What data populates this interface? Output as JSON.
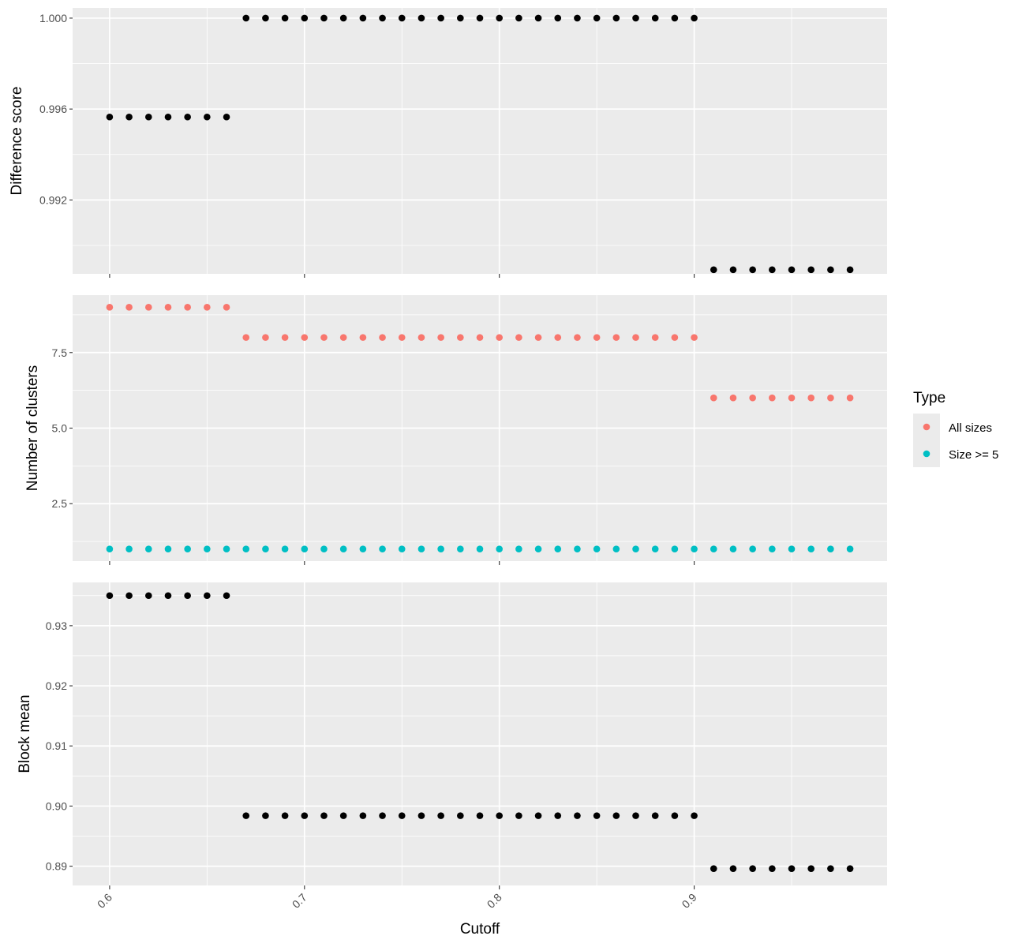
{
  "chart_data": {
    "type": "scatter",
    "x": [
      0.6,
      0.61,
      0.62,
      0.63,
      0.64,
      0.65,
      0.66,
      0.67,
      0.68,
      0.69,
      0.7,
      0.71,
      0.72,
      0.73,
      0.74,
      0.75,
      0.76,
      0.77,
      0.78,
      0.79,
      0.8,
      0.81,
      0.82,
      0.83,
      0.84,
      0.85,
      0.86,
      0.87,
      0.88,
      0.89,
      0.9,
      0.91,
      0.92,
      0.93,
      0.94,
      0.95,
      0.96,
      0.97,
      0.98
    ],
    "xlabel": "Cutoff",
    "xlim": [
      0.581,
      0.999
    ],
    "xticks": [
      0.6,
      0.7,
      0.8,
      0.9
    ],
    "xtick_labels": [
      "0.6",
      "0.7",
      "0.8",
      "0.9"
    ],
    "grid": true,
    "colors": {
      "panel_bg": "#ebebeb",
      "grid": "#ffffff",
      "black_points": "#000000"
    },
    "legend": {
      "title": "Type",
      "position": "right",
      "entries": [
        {
          "label": "All sizes",
          "color": "#f8766d"
        },
        {
          "label": "Size >= 5",
          "color": "#00bfc4"
        }
      ]
    },
    "panels": [
      {
        "ylabel": "Difference score",
        "ylim": [
          0.98875,
          1.00045
        ],
        "yticks": [
          0.992,
          0.996,
          1.0
        ],
        "ytick_labels": [
          "0.992",
          "0.996",
          "1.000"
        ],
        "series": [
          {
            "color": "#000000",
            "values": [
              0.99565,
              0.99565,
              0.99565,
              0.99565,
              0.99565,
              0.99565,
              0.99565,
              1.0,
              1.0,
              1.0,
              1.0,
              1.0,
              1.0,
              1.0,
              1.0,
              1.0,
              1.0,
              1.0,
              1.0,
              1.0,
              1.0,
              1.0,
              1.0,
              1.0,
              1.0,
              1.0,
              1.0,
              1.0,
              1.0,
              1.0,
              1.0,
              0.98893,
              0.98893,
              0.98893,
              0.98893,
              0.98893,
              0.98893,
              0.98893,
              0.98893
            ]
          }
        ]
      },
      {
        "ylabel": "Number of clusters",
        "ylim": [
          0.6,
          9.4
        ],
        "yticks": [
          2.5,
          5.0,
          7.5
        ],
        "ytick_labels": [
          "2.5",
          "5.0",
          "7.5"
        ],
        "series": [
          {
            "name": "All sizes",
            "color": "#f8766d",
            "values": [
              9,
              9,
              9,
              9,
              9,
              9,
              9,
              8,
              8,
              8,
              8,
              8,
              8,
              8,
              8,
              8,
              8,
              8,
              8,
              8,
              8,
              8,
              8,
              8,
              8,
              8,
              8,
              8,
              8,
              8,
              8,
              6,
              6,
              6,
              6,
              6,
              6,
              6,
              6
            ]
          },
          {
            "name": "Size >= 5",
            "color": "#00bfc4",
            "values": [
              1,
              1,
              1,
              1,
              1,
              1,
              1,
              1,
              1,
              1,
              1,
              1,
              1,
              1,
              1,
              1,
              1,
              1,
              1,
              1,
              1,
              1,
              1,
              1,
              1,
              1,
              1,
              1,
              1,
              1,
              1,
              1,
              1,
              1,
              1,
              1,
              1,
              1,
              1
            ]
          }
        ]
      },
      {
        "ylabel": "Block mean",
        "ylim": [
          0.8868,
          0.9372
        ],
        "yticks": [
          0.89,
          0.9,
          0.91,
          0.92,
          0.93
        ],
        "ytick_labels": [
          "0.89",
          "0.90",
          "0.91",
          "0.92",
          "0.93"
        ],
        "series": [
          {
            "color": "#000000",
            "values": [
              0.935,
              0.935,
              0.935,
              0.935,
              0.935,
              0.935,
              0.935,
              0.8984,
              0.8984,
              0.8984,
              0.8984,
              0.8984,
              0.8984,
              0.8984,
              0.8984,
              0.8984,
              0.8984,
              0.8984,
              0.8984,
              0.8984,
              0.8984,
              0.8984,
              0.8984,
              0.8984,
              0.8984,
              0.8984,
              0.8984,
              0.8984,
              0.8984,
              0.8984,
              0.8984,
              0.8896,
              0.8896,
              0.8896,
              0.8896,
              0.8896,
              0.8896,
              0.8896,
              0.8896
            ]
          }
        ]
      }
    ]
  }
}
